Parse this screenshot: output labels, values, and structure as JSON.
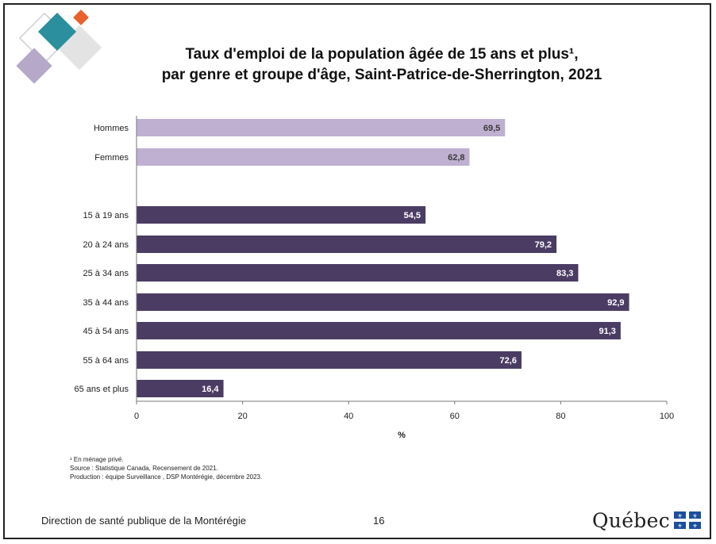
{
  "chart_data": {
    "type": "bar",
    "orientation": "horizontal",
    "title": "Taux d'emploi de la population âgée de 15 ans et plus¹,",
    "subtitle": "par genre et groupe d'âge, Saint-Patrice-de-Sherrington, 2021",
    "xlabel": "%",
    "xlim": [
      0,
      100
    ],
    "x_ticks": [
      "0",
      "20",
      "40",
      "60",
      "80",
      "100"
    ],
    "grid": false,
    "categories": [
      "Hommes",
      "Femmes",
      "15 à 19 ans",
      "20 à 24 ans",
      "25 à 34 ans",
      "35 à 44 ans",
      "45 à 54 ans",
      "55 à 64 ans",
      "65 ans et plus"
    ],
    "values": [
      69.5,
      62.8,
      54.5,
      79.2,
      83.3,
      92.9,
      91.3,
      72.6,
      16.4
    ],
    "value_labels": [
      "69,5",
      "62,8",
      "54,5",
      "79,2",
      "83,3",
      "92,9",
      "91,3",
      "72,6",
      "16,4"
    ],
    "groups": [
      "genre",
      "genre",
      "age",
      "age",
      "age",
      "age",
      "age",
      "age",
      "age"
    ],
    "colors": {
      "genre": "#bfb0d2",
      "age": "#4b3c63",
      "label_on_light": "#3a3a3a",
      "label_on_dark": "#ffffff"
    }
  },
  "footnotes": [
    "¹ En ménage privé.",
    "Source : Statistique Canada, Recensement de 2021.",
    "Production : équipe Surveillance , DSP Montérégie, décembre 2023."
  ],
  "footer": {
    "organization": "Direction de santé publique de la Montérégie",
    "page_number": "16",
    "logo_text": "Québec"
  },
  "decoration_colors": [
    "#2b8f9d",
    "#e8622c",
    "#b5a8c9",
    "#d8d8d8"
  ]
}
